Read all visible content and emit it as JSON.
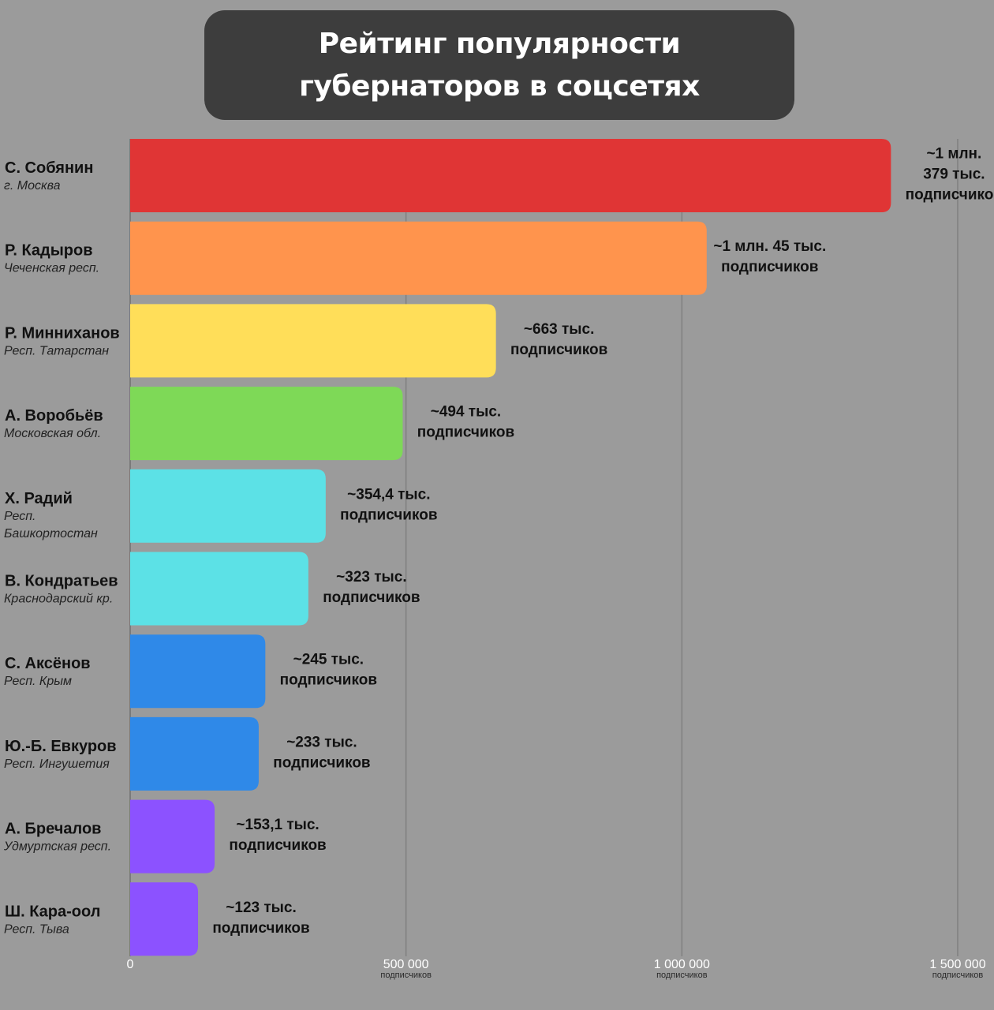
{
  "title": "Рейтинг популярности губернаторов в соцсетях",
  "chart_data": {
    "type": "bar",
    "orientation": "horizontal",
    "title": "Рейтинг популярности губернаторов в соцсетях",
    "xlim": [
      0,
      1500000
    ],
    "x_ticks": [
      {
        "value": 0,
        "label": "0",
        "unit": ""
      },
      {
        "value": 500000,
        "label": "500 000",
        "unit": "подписчиков"
      },
      {
        "value": 1000000,
        "label": "1 000 000",
        "unit": "подписчиков"
      },
      {
        "value": 1500000,
        "label": "1 500 000",
        "unit": "подписчиков"
      }
    ],
    "grid": true,
    "bars": [
      {
        "name": "С. Собянин",
        "region": "г. Москва",
        "value": 1379000,
        "color": "#e03535",
        "label_lines": [
          "~1 млн.",
          "379 тыс.",
          "подписчиков"
        ]
      },
      {
        "name": "Р. Кадыров",
        "region": "Чеченская респ.",
        "value": 1045000,
        "color": "#ff944d",
        "label_lines": [
          "~1 млн. 45 тыс.",
          "подписчиков"
        ]
      },
      {
        "name": "Р. Минниханов",
        "region": "Респ. Татарстан",
        "value": 663000,
        "color": "#ffde59",
        "label_lines": [
          "~663 тыс.",
          "подписчиков"
        ]
      },
      {
        "name": "А. Воробьёв",
        "region": "Московская обл.",
        "value": 494000,
        "color": "#7ed957",
        "label_lines": [
          "~494 тыс.",
          "подписчиков"
        ]
      },
      {
        "name": "Х. Радий",
        "region": "Респ. Башкортостан",
        "value": 354400,
        "color": "#5ce1e6",
        "label_lines": [
          "~354,4 тыс.",
          "подписчиков"
        ]
      },
      {
        "name": "В. Кондратьев",
        "region": "Краснодарский кр.",
        "value": 323000,
        "color": "#5ce1e6",
        "label_lines": [
          "~323 тыс.",
          "подписчиков"
        ]
      },
      {
        "name": "С. Аксёнов",
        "region": "Респ. Крым",
        "value": 245000,
        "color": "#2f89e8",
        "label_lines": [
          "~245 тыс.",
          "подписчиков"
        ]
      },
      {
        "name": "Ю.-Б. Евкуров",
        "region": "Респ. Ингушетия",
        "value": 233000,
        "color": "#2f89e8",
        "label_lines": [
          "~233 тыс.",
          "подписчиков"
        ]
      },
      {
        "name": "А. Бречалов",
        "region": "Удмуртская респ.",
        "value": 153100,
        "color": "#8c52ff",
        "label_lines": [
          "~153,1 тыс.",
          "подписчиков"
        ]
      },
      {
        "name": "Ш. Кара-оол",
        "region": "Респ. Тыва",
        "value": 123000,
        "color": "#8c52ff",
        "label_lines": [
          "~123 тыс.",
          "подписчиков"
        ]
      }
    ]
  }
}
